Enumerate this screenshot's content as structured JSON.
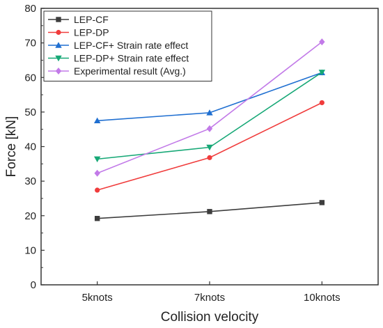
{
  "chart_data": {
    "type": "line",
    "xlabel": "Collision velocity",
    "ylabel": "Force [kN]",
    "categories": [
      "5knots",
      "7knots",
      "10knots"
    ],
    "ylim": [
      0,
      80
    ],
    "yticks": [
      0,
      10,
      20,
      30,
      40,
      50,
      60,
      70,
      80
    ],
    "grid": false,
    "legend_position": "top-left",
    "series": [
      {
        "name": "LEP-CF",
        "values": [
          19.2,
          21.2,
          23.8
        ],
        "color": "#3d3d3d",
        "marker": "square"
      },
      {
        "name": "LEP-DP",
        "values": [
          27.4,
          36.8,
          52.7
        ],
        "color": "#f03c3c",
        "marker": "circle"
      },
      {
        "name": "LEP-CF+ Strain rate effect",
        "values": [
          47.5,
          49.8,
          61.4
        ],
        "color": "#1f6fd1",
        "marker": "triangle-up"
      },
      {
        "name": "LEP-DP+ Strain rate effect",
        "values": [
          36.4,
          39.8,
          61.5
        ],
        "color": "#16a876",
        "marker": "triangle-down"
      },
      {
        "name": "Experimental result (Avg.)",
        "values": [
          32.3,
          45.2,
          70.3
        ],
        "color": "#c27ae8",
        "marker": "diamond"
      }
    ]
  }
}
